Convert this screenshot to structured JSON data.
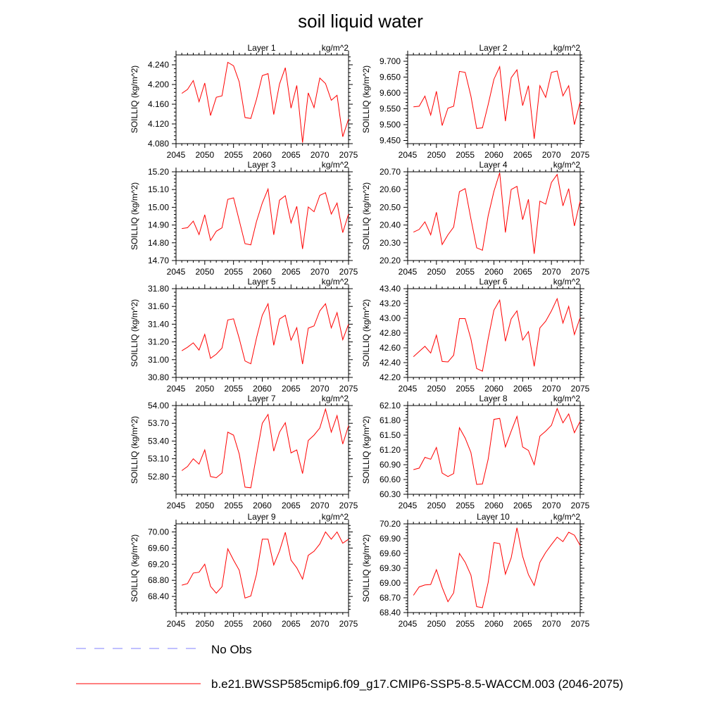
{
  "title": "soil liquid water",
  "legend": [
    {
      "label": "No Obs",
      "color": "#8080ff",
      "dash": true
    },
    {
      "label": "b.e21.BWSSP585cmip6.f09_g17.CMIP6-SSP5-8.5-WACCM.003 (2046-2075)",
      "color": "#ff0000",
      "dash": false
    }
  ],
  "chart_data": [
    {
      "type": "line",
      "title": "Layer 1",
      "units": "kg/m^2",
      "ylabel": "SOILLIQ  (kg/m^2)",
      "xlim": [
        2045,
        2075
      ],
      "xticks": [
        2045,
        2050,
        2055,
        2060,
        2065,
        2070,
        2075
      ],
      "ylim": [
        4.08,
        4.26
      ],
      "yticks": [
        "4.080",
        "4.120",
        "4.160",
        "4.200",
        "4.240"
      ],
      "x": [
        2046,
        2047,
        2048,
        2049,
        2050,
        2051,
        2052,
        2053,
        2054,
        2055,
        2056,
        2057,
        2058,
        2059,
        2060,
        2061,
        2062,
        2063,
        2064,
        2065,
        2066,
        2067,
        2068,
        2069,
        2070,
        2071,
        2072,
        2073,
        2074,
        2075
      ],
      "series": [
        {
          "name": "b.e21.BWSSP585cmip6.f09_g17.CMIP6-SSP5-8.5-WACCM.003 (2046-2075)",
          "color": "#ff0000",
          "values": [
            4.182,
            4.19,
            4.208,
            4.165,
            4.203,
            4.137,
            4.174,
            4.177,
            4.245,
            4.238,
            4.205,
            4.133,
            4.131,
            4.17,
            4.218,
            4.222,
            4.139,
            4.201,
            4.234,
            4.152,
            4.198,
            4.082,
            4.183,
            4.153,
            4.213,
            4.202,
            4.168,
            4.178,
            4.094,
            4.13
          ]
        }
      ]
    },
    {
      "type": "line",
      "title": "Layer 2",
      "units": "kg/m^2",
      "ylabel": "SOILLIQ  (kg/m^2)",
      "xlim": [
        2045,
        2075
      ],
      "xticks": [
        2045,
        2050,
        2055,
        2060,
        2065,
        2070,
        2075
      ],
      "ylim": [
        9.44,
        9.72
      ],
      "yticks": [
        "9.450",
        "9.500",
        "9.550",
        "9.600",
        "9.650",
        "9.700"
      ],
      "x": [
        2046,
        2047,
        2048,
        2049,
        2050,
        2051,
        2052,
        2053,
        2054,
        2055,
        2056,
        2057,
        2058,
        2059,
        2060,
        2061,
        2062,
        2063,
        2064,
        2065,
        2066,
        2067,
        2068,
        2069,
        2070,
        2071,
        2072,
        2073,
        2074,
        2075
      ],
      "series": [
        {
          "name": "b.e21.BWSSP585cmip6.f09_g17.CMIP6-SSP5-8.5-WACCM.003 (2046-2075)",
          "color": "#ff0000",
          "values": [
            9.556,
            9.558,
            9.59,
            9.53,
            9.605,
            9.497,
            9.552,
            9.558,
            9.668,
            9.665,
            9.59,
            9.488,
            9.49,
            9.563,
            9.643,
            9.683,
            9.511,
            9.648,
            9.673,
            9.56,
            9.623,
            9.455,
            9.623,
            9.586,
            9.665,
            9.669,
            9.591,
            9.623,
            9.5,
            9.572
          ]
        }
      ]
    },
    {
      "type": "line",
      "title": "Layer 3",
      "units": "kg/m^2",
      "ylabel": "SOILLIQ  (kg/m^2)",
      "xlim": [
        2045,
        2075
      ],
      "xticks": [
        2045,
        2050,
        2055,
        2060,
        2065,
        2070,
        2075
      ],
      "ylim": [
        14.7,
        15.2
      ],
      "yticks": [
        "14.70",
        "14.80",
        "14.90",
        "15.00",
        "15.10",
        "15.20"
      ],
      "x": [
        2046,
        2047,
        2048,
        2049,
        2050,
        2051,
        2052,
        2053,
        2054,
        2055,
        2056,
        2057,
        2058,
        2059,
        2060,
        2061,
        2062,
        2063,
        2064,
        2065,
        2066,
        2067,
        2068,
        2069,
        2070,
        2071,
        2072,
        2073,
        2074,
        2075
      ],
      "series": [
        {
          "name": "b.e21.BWSSP585cmip6.f09_g17.CMIP6-SSP5-8.5-WACCM.003 (2046-2075)",
          "color": "#ff0000",
          "values": [
            14.88,
            14.885,
            14.922,
            14.846,
            14.958,
            14.813,
            14.865,
            14.884,
            15.045,
            15.053,
            14.925,
            14.795,
            14.788,
            14.92,
            15.024,
            15.103,
            14.845,
            15.04,
            15.065,
            14.912,
            15.005,
            14.765,
            15.002,
            14.975,
            15.067,
            15.082,
            14.962,
            15.024,
            14.857,
            14.962
          ]
        }
      ]
    },
    {
      "type": "line",
      "title": "Layer 4",
      "units": "kg/m^2",
      "ylabel": "SOILLIQ  (kg/m^2)",
      "xlim": [
        2045,
        2075
      ],
      "xticks": [
        2045,
        2050,
        2055,
        2060,
        2065,
        2070,
        2075
      ],
      "ylim": [
        20.2,
        20.7
      ],
      "yticks": [
        "20.20",
        "20.30",
        "20.40",
        "20.50",
        "20.60",
        "20.70"
      ],
      "x": [
        2046,
        2047,
        2048,
        2049,
        2050,
        2051,
        2052,
        2053,
        2054,
        2055,
        2056,
        2057,
        2058,
        2059,
        2060,
        2061,
        2062,
        2063,
        2064,
        2065,
        2066,
        2067,
        2068,
        2069,
        2070,
        2071,
        2072,
        2073,
        2074,
        2075
      ],
      "series": [
        {
          "name": "b.e21.BWSSP585cmip6.f09_g17.CMIP6-SSP5-8.5-WACCM.003 (2046-2075)",
          "color": "#ff0000",
          "values": [
            20.36,
            20.375,
            20.418,
            20.345,
            20.472,
            20.29,
            20.345,
            20.388,
            20.588,
            20.605,
            20.435,
            20.272,
            20.258,
            20.452,
            20.59,
            20.695,
            20.358,
            20.6,
            20.618,
            20.43,
            20.545,
            20.238,
            20.535,
            20.518,
            20.64,
            20.685,
            20.508,
            20.605,
            20.395,
            20.535
          ]
        }
      ]
    },
    {
      "type": "line",
      "title": "Layer 5",
      "units": "kg/m^2",
      "ylabel": "SOILLIQ  (kg/m^2)",
      "xlim": [
        2045,
        2075
      ],
      "xticks": [
        2045,
        2050,
        2055,
        2060,
        2065,
        2070,
        2075
      ],
      "ylim": [
        30.8,
        31.8
      ],
      "yticks": [
        "30.80",
        "31.00",
        "31.20",
        "31.40",
        "31.60",
        "31.80"
      ],
      "x": [
        2046,
        2047,
        2048,
        2049,
        2050,
        2051,
        2052,
        2053,
        2054,
        2055,
        2056,
        2057,
        2058,
        2059,
        2060,
        2061,
        2062,
        2063,
        2064,
        2065,
        2066,
        2067,
        2068,
        2069,
        2070,
        2071,
        2072,
        2073,
        2074,
        2075
      ],
      "series": [
        {
          "name": "b.e21.BWSSP585cmip6.f09_g17.CMIP6-SSP5-8.5-WACCM.003 (2046-2075)",
          "color": "#ff0000",
          "values": [
            31.1,
            31.14,
            31.19,
            31.108,
            31.285,
            31.015,
            31.062,
            31.13,
            31.448,
            31.46,
            31.238,
            30.985,
            30.953,
            31.245,
            31.5,
            31.63,
            31.162,
            31.458,
            31.5,
            31.22,
            31.36,
            30.95,
            31.355,
            31.38,
            31.55,
            31.63,
            31.358,
            31.53,
            31.225,
            31.4
          ]
        }
      ]
    },
    {
      "type": "line",
      "title": "Layer 6",
      "units": "kg/m^2",
      "ylabel": "SOILLIQ  (kg/m^2)",
      "xlim": [
        2045,
        2075
      ],
      "xticks": [
        2045,
        2050,
        2055,
        2060,
        2065,
        2070,
        2075
      ],
      "ylim": [
        42.2,
        43.4
      ],
      "yticks": [
        "42.20",
        "42.40",
        "42.60",
        "42.80",
        "43.00",
        "43.20",
        "43.40"
      ],
      "x": [
        2046,
        2047,
        2048,
        2049,
        2050,
        2051,
        2052,
        2053,
        2054,
        2055,
        2056,
        2057,
        2058,
        2059,
        2060,
        2061,
        2062,
        2063,
        2064,
        2065,
        2066,
        2067,
        2068,
        2069,
        2070,
        2071,
        2072,
        2073,
        2074,
        2075
      ],
      "series": [
        {
          "name": "b.e21.BWSSP585cmip6.f09_g17.CMIP6-SSP5-8.5-WACCM.003 (2046-2075)",
          "color": "#ff0000",
          "values": [
            42.48,
            42.55,
            42.62,
            42.53,
            42.77,
            42.415,
            42.41,
            42.5,
            42.995,
            42.995,
            42.72,
            42.32,
            42.285,
            42.72,
            43.11,
            43.245,
            42.69,
            42.99,
            43.1,
            42.705,
            42.82,
            42.35,
            42.87,
            42.96,
            43.1,
            43.265,
            42.935,
            43.16,
            42.78,
            43.01
          ]
        }
      ]
    },
    {
      "type": "line",
      "title": "Layer 7",
      "units": "kg/m^2",
      "ylabel": "SOILLIQ  (kg/m^2)",
      "xlim": [
        2045,
        2075
      ],
      "xticks": [
        2045,
        2050,
        2055,
        2060,
        2065,
        2070,
        2075
      ],
      "ylim": [
        52.5,
        54.0
      ],
      "yticks": [
        "52.80",
        "53.10",
        "53.40",
        "53.70",
        "54.00"
      ],
      "x": [
        2046,
        2047,
        2048,
        2049,
        2050,
        2051,
        2052,
        2053,
        2054,
        2055,
        2056,
        2057,
        2058,
        2059,
        2060,
        2061,
        2062,
        2063,
        2064,
        2065,
        2066,
        2067,
        2068,
        2069,
        2070,
        2071,
        2072,
        2073,
        2074,
        2075
      ],
      "series": [
        {
          "name": "b.e21.BWSSP585cmip6.f09_g17.CMIP6-SSP5-8.5-WACCM.003 (2046-2075)",
          "color": "#ff0000",
          "values": [
            52.9,
            52.97,
            53.1,
            53.01,
            53.25,
            52.8,
            52.78,
            52.86,
            53.55,
            53.5,
            53.18,
            52.62,
            52.61,
            53.16,
            53.7,
            53.85,
            53.23,
            53.55,
            53.71,
            53.2,
            53.25,
            52.85,
            53.41,
            53.5,
            53.62,
            53.94,
            53.55,
            53.83,
            53.35,
            53.66
          ]
        }
      ]
    },
    {
      "type": "line",
      "title": "Layer 8",
      "units": "kg/m^2",
      "ylabel": "SOILLIQ  (kg/m^2)",
      "xlim": [
        2045,
        2075
      ],
      "xticks": [
        2045,
        2050,
        2055,
        2060,
        2065,
        2070,
        2075
      ],
      "ylim": [
        60.3,
        62.1
      ],
      "yticks": [
        "60.30",
        "60.60",
        "60.90",
        "61.20",
        "61.50",
        "61.80",
        "62.10"
      ],
      "x": [
        2046,
        2047,
        2048,
        2049,
        2050,
        2051,
        2052,
        2053,
        2054,
        2055,
        2056,
        2057,
        2058,
        2059,
        2060,
        2061,
        2062,
        2063,
        2064,
        2065,
        2066,
        2067,
        2068,
        2069,
        2070,
        2071,
        2072,
        2073,
        2074,
        2075
      ],
      "series": [
        {
          "name": "b.e21.BWSSP585cmip6.f09_g17.CMIP6-SSP5-8.5-WACCM.003 (2046-2075)",
          "color": "#ff0000",
          "values": [
            60.8,
            60.83,
            61.05,
            61.01,
            61.25,
            60.73,
            60.66,
            60.72,
            61.65,
            61.44,
            61.15,
            60.5,
            60.51,
            61.01,
            61.82,
            61.84,
            61.26,
            61.58,
            61.88,
            61.26,
            61.19,
            60.9,
            61.48,
            61.58,
            61.7,
            62.04,
            61.75,
            61.93,
            61.55,
            61.78
          ]
        }
      ]
    },
    {
      "type": "line",
      "title": "Layer 9",
      "units": "kg/m^2",
      "ylabel": "SOILLIQ  (kg/m^2)",
      "xlim": [
        2045,
        2075
      ],
      "xticks": [
        2045,
        2050,
        2055,
        2060,
        2065,
        2070,
        2075
      ],
      "ylim": [
        68.0,
        70.2
      ],
      "yticks": [
        "68.40",
        "68.80",
        "69.20",
        "69.60",
        "70.00"
      ],
      "x": [
        2046,
        2047,
        2048,
        2049,
        2050,
        2051,
        2052,
        2053,
        2054,
        2055,
        2056,
        2057,
        2058,
        2059,
        2060,
        2061,
        2062,
        2063,
        2064,
        2065,
        2066,
        2067,
        2068,
        2069,
        2070,
        2071,
        2072,
        2073,
        2074,
        2075
      ],
      "series": [
        {
          "name": "b.e21.BWSSP585cmip6.f09_g17.CMIP6-SSP5-8.5-WACCM.003 (2046-2075)",
          "color": "#ff0000",
          "values": [
            68.68,
            68.72,
            68.98,
            69.0,
            69.2,
            68.65,
            68.48,
            68.64,
            69.58,
            69.3,
            69.05,
            68.36,
            68.41,
            68.95,
            69.82,
            69.82,
            69.18,
            69.53,
            69.99,
            69.3,
            69.11,
            68.83,
            69.42,
            69.52,
            69.7,
            70.0,
            69.82,
            70.0,
            69.72,
            69.82
          ]
        }
      ]
    },
    {
      "type": "line",
      "title": "Layer 10",
      "units": "kg/m^2",
      "ylabel": "SOILLIQ  (kg/m^2)",
      "xlim": [
        2045,
        2075
      ],
      "xticks": [
        2045,
        2050,
        2055,
        2060,
        2065,
        2070,
        2075
      ],
      "ylim": [
        68.4,
        70.2
      ],
      "yticks": [
        "68.40",
        "68.70",
        "69.00",
        "69.30",
        "69.60",
        "69.90",
        "70.20"
      ],
      "x": [
        2046,
        2047,
        2048,
        2049,
        2050,
        2051,
        2052,
        2053,
        2054,
        2055,
        2056,
        2057,
        2058,
        2059,
        2060,
        2061,
        2062,
        2063,
        2064,
        2065,
        2066,
        2067,
        2068,
        2069,
        2070,
        2071,
        2072,
        2073,
        2074,
        2075
      ],
      "series": [
        {
          "name": "b.e21.BWSSP585cmip6.f09_g17.CMIP6-SSP5-8.5-WACCM.003 (2046-2075)",
          "color": "#ff0000",
          "values": [
            68.75,
            68.92,
            68.96,
            68.97,
            69.27,
            68.91,
            68.62,
            68.8,
            69.6,
            69.42,
            69.16,
            68.52,
            68.5,
            69.01,
            69.82,
            69.8,
            69.18,
            69.51,
            70.12,
            69.54,
            69.17,
            68.95,
            69.42,
            69.62,
            69.78,
            69.93,
            69.84,
            70.03,
            69.97,
            69.76
          ]
        }
      ]
    }
  ]
}
